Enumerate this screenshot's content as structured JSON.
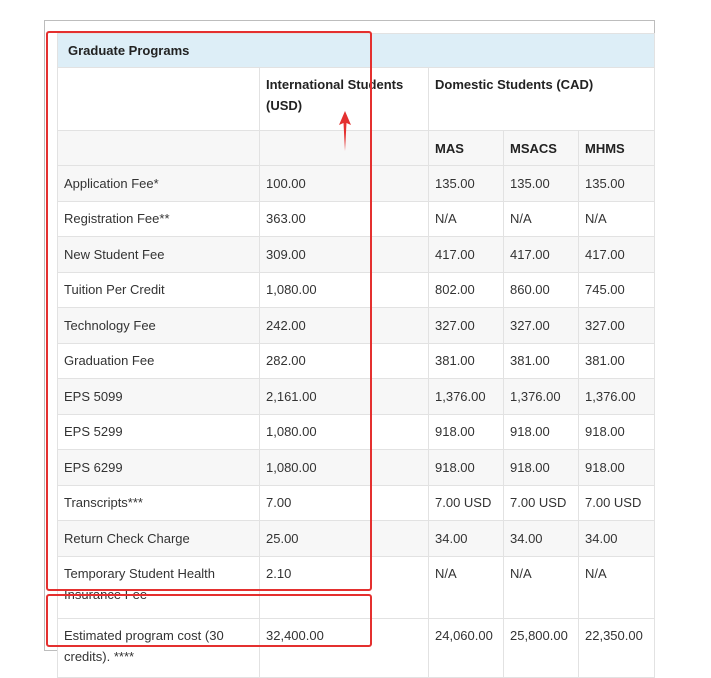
{
  "table": {
    "title": "Graduate Programs",
    "col_international": "International Students (USD)",
    "col_domestic": "Domestic Students (CAD)",
    "sub_cols": [
      "MAS",
      "MSACS",
      "MHMS"
    ],
    "rows": [
      {
        "label": "Application Fee*",
        "intl": "100.00",
        "mas": "135.00",
        "msacs": "135.00",
        "mhms": "135.00"
      },
      {
        "label": "Registration Fee**",
        "intl": "363.00",
        "mas": "N/A",
        "msacs": "N/A",
        "mhms": "N/A"
      },
      {
        "label": "New Student Fee",
        "intl": "309.00",
        "mas": "417.00",
        "msacs": "417.00",
        "mhms": "417.00"
      },
      {
        "label": "Tuition Per Credit",
        "intl": "1,080.00",
        "mas": "802.00",
        "msacs": "860.00",
        "mhms": "745.00"
      },
      {
        "label": "Technology Fee",
        "intl": "242.00",
        "mas": "327.00",
        "msacs": "327.00",
        "mhms": "327.00"
      },
      {
        "label": "Graduation Fee",
        "intl": "282.00",
        "mas": "381.00",
        "msacs": "381.00",
        "mhms": "381.00"
      },
      {
        "label": "EPS 5099",
        "intl": "2,161.00",
        "mas": "1,376.00",
        "msacs": "1,376.00",
        "mhms": "1,376.00"
      },
      {
        "label": "EPS 5299",
        "intl": "1,080.00",
        "mas": "918.00",
        "msacs": "918.00",
        "mhms": "918.00"
      },
      {
        "label": "EPS 6299",
        "intl": "1,080.00",
        "mas": "918.00",
        "msacs": "918.00",
        "mhms": "918.00"
      },
      {
        "label": "Transcripts***",
        "intl": "7.00",
        "mas": "7.00 USD",
        "msacs": "7.00 USD",
        "mhms": "7.00 USD"
      },
      {
        "label": "Return Check Charge",
        "intl": "25.00",
        "mas": "34.00",
        "msacs": "34.00",
        "mhms": "34.00"
      },
      {
        "label": "Temporary Student Health Insurance Fee",
        "intl": "2.10",
        "mas": "N/A",
        "msacs": "N/A",
        "mhms": "N/A"
      }
    ],
    "total": {
      "label": "Estimated program cost (30 credits). ****",
      "intl": "32,400.00",
      "mas": "24,060.00",
      "msacs": "25,800.00",
      "mhms": "22,350.00"
    }
  },
  "annotations": {
    "box_color": "#e4302f",
    "arrow_icon": "red-up-arrow"
  },
  "colors": {
    "header_bg": "#ddeef7",
    "stripe_bg": "#f7f7f7",
    "border": "#e2e2e2"
  }
}
